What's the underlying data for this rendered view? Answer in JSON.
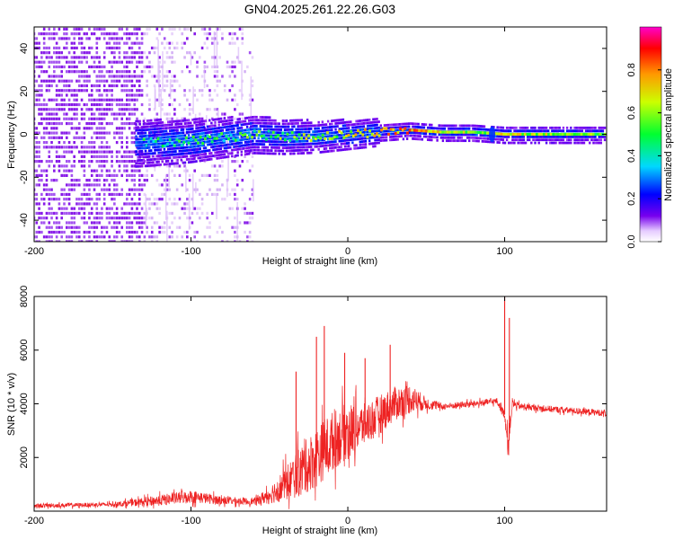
{
  "title": "GN04.2025.261.22.26.G03",
  "colors": {
    "snr_line": "#ee2222",
    "spectro_bg": "#ffffff",
    "purple": "#7a00e6",
    "light_purple": "#d8b8f2"
  },
  "chart_data": [
    {
      "type": "heatmap",
      "name": "spectrogram",
      "xlabel": "Height of straight line (km)",
      "ylabel": "Frequency (Hz)",
      "xlim": [
        -200,
        165
      ],
      "ylim": [
        -50,
        50
      ],
      "xticks": [
        -200,
        -100,
        0,
        100
      ],
      "xtick_labels": [
        "-200",
        "-100",
        "0",
        "100"
      ],
      "yticks": [
        -40,
        -20,
        0,
        20,
        40
      ],
      "ytick_labels": [
        "-40",
        "-20",
        "0",
        "20",
        "40"
      ],
      "ridge": {
        "x": [
          -130,
          -100,
          -60,
          -40,
          -20,
          0,
          20,
          40,
          60,
          80,
          100,
          130,
          165
        ],
        "y": [
          -4,
          -3,
          0,
          -1,
          -1,
          0,
          1,
          2,
          1,
          1,
          0,
          0,
          0
        ],
        "amplitude": [
          0.35,
          0.4,
          0.45,
          0.5,
          0.55,
          0.6,
          0.7,
          0.75,
          0.6,
          0.55,
          0.6,
          0.55,
          0.5
        ]
      },
      "colorbar": {
        "label": "Normalized spectral amplitude",
        "range": [
          0,
          1
        ],
        "ticks": [
          0.0,
          0.2,
          0.4,
          0.6,
          0.8
        ],
        "tick_labels": [
          "0.0",
          "0.2",
          "0.4",
          "0.6",
          "0.8"
        ]
      }
    },
    {
      "type": "line",
      "name": "snr",
      "xlabel": "Height of straight line (km)",
      "ylabel": "SNR (10 * v/v)",
      "xlim": [
        -200,
        165
      ],
      "ylim": [
        0,
        8000
      ],
      "xticks": [
        -200,
        -100,
        0,
        100
      ],
      "xtick_labels": [
        "-200",
        "-100",
        "0",
        "100"
      ],
      "yticks": [
        2000,
        4000,
        6000,
        8000
      ],
      "ytick_labels": [
        "2000",
        "4000",
        "6000",
        "8000"
      ],
      "envelope": {
        "x": [
          -200,
          -150,
          -120,
          -100,
          -80,
          -60,
          -50,
          -40,
          -30,
          -20,
          -10,
          0,
          10,
          20,
          30,
          40,
          50,
          60,
          80,
          95,
          100,
          102,
          105,
          110,
          130,
          165
        ],
        "y": [
          200,
          250,
          400,
          550,
          400,
          350,
          600,
          1000,
          1500,
          2000,
          2600,
          3000,
          3200,
          3600,
          4000,
          4200,
          4000,
          3900,
          4000,
          4100,
          3600,
          2500,
          4000,
          3900,
          3800,
          3650
        ],
        "noise": [
          100,
          100,
          250,
          300,
          200,
          150,
          400,
          800,
          1200,
          1400,
          1400,
          1300,
          1000,
          900,
          800,
          700,
          300,
          150,
          150,
          150,
          200,
          600,
          200,
          150,
          150,
          150
        ]
      },
      "spikes": [
        {
          "x": -33,
          "y": 5200
        },
        {
          "x": -20,
          "y": 6500
        },
        {
          "x": -15,
          "y": 6900
        },
        {
          "x": -2,
          "y": 5900
        },
        {
          "x": 11,
          "y": 5700
        },
        {
          "x": 27,
          "y": 6200
        },
        {
          "x": 100,
          "y": 8200
        },
        {
          "x": 103,
          "y": 7200
        }
      ]
    }
  ]
}
